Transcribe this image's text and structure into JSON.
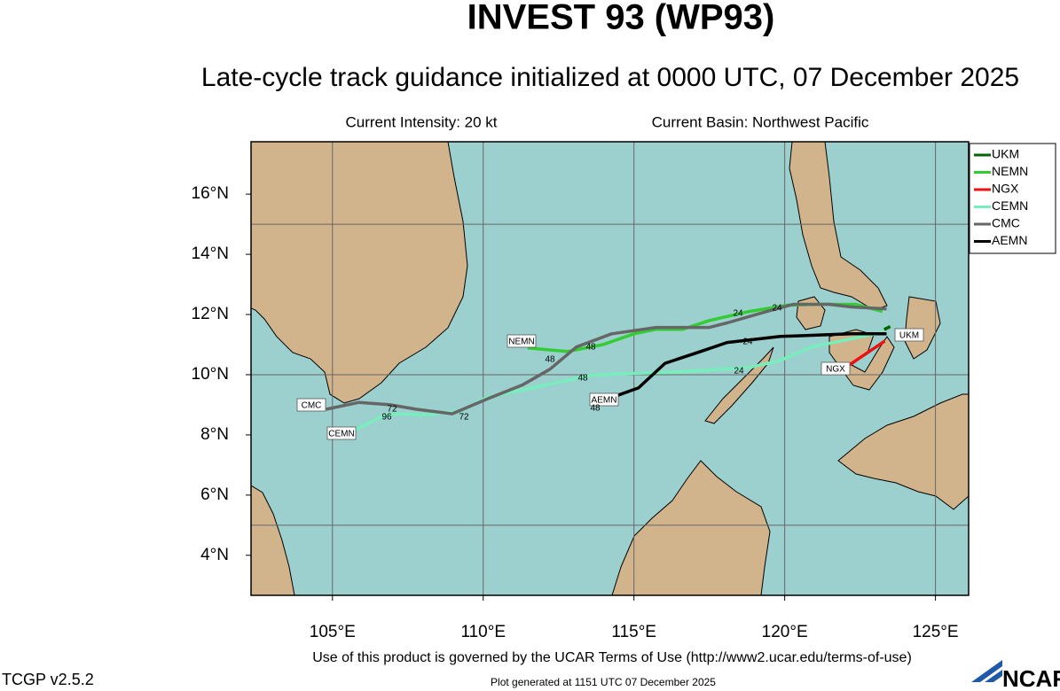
{
  "header": {
    "title": "INVEST 93 (WP93)",
    "subtitle": "Late-cycle track guidance initialized at 0000 UTC, 07 December 2025",
    "intensity": "Current Intensity: 20 kt",
    "basin": "Current Basin: Northwest Pacific"
  },
  "map": {
    "lonlim": [
      102.3,
      126.1
    ],
    "latlim": [
      2.67,
      17.74
    ],
    "lon_ticks": [
      {
        "value": 105,
        "label": "105°E"
      },
      {
        "value": 110,
        "label": "110°E"
      },
      {
        "value": 115,
        "label": "115°E"
      },
      {
        "value": 120,
        "label": "120°E"
      },
      {
        "value": 125,
        "label": "125°E"
      }
    ],
    "lat_ticks": [
      {
        "value": 4,
        "label": "4°N"
      },
      {
        "value": 6,
        "label": "6°N"
      },
      {
        "value": 8,
        "label": "8°N"
      },
      {
        "value": 10,
        "label": "10°N"
      },
      {
        "value": 12,
        "label": "12°N"
      },
      {
        "value": 14,
        "label": "14°N"
      },
      {
        "value": 16,
        "label": "16°N"
      }
    ],
    "grid_lats": [
      5,
      10,
      15
    ],
    "tracks": [
      {
        "name": "UKM",
        "color": "#006400",
        "lon": [
          123.5,
          123.3
        ],
        "lat": [
          11.6,
          11.5
        ]
      },
      {
        "name": "NEMN",
        "color": "#33cc33",
        "lon": [
          123.24,
          122.35,
          121.03,
          120.09,
          118.82,
          117.5,
          116.62,
          115.74,
          115.0,
          113.97,
          112.79,
          111.47
        ],
        "lat": [
          12.1,
          12.34,
          12.34,
          12.31,
          12.1,
          11.8,
          11.51,
          11.51,
          11.36,
          11.0,
          10.77,
          10.89
        ]
      },
      {
        "name": "NGX",
        "color": "#ee1111",
        "lon": [
          123.32,
          122.15
        ],
        "lat": [
          11.12,
          10.33
        ]
      },
      {
        "name": "CEMN",
        "color": "#77eebb",
        "lon": [
          123.32,
          121.62,
          120.88,
          119.85,
          118.82,
          116.47,
          114.56,
          113.53,
          111.32,
          110.15,
          109.26,
          108.09,
          107.06,
          106.62,
          106.03,
          105.29
        ],
        "lat": [
          11.42,
          11.07,
          10.92,
          10.47,
          10.24,
          10.09,
          10.03,
          9.97,
          9.5,
          9.26,
          8.79,
          8.67,
          8.7,
          8.61,
          8.31,
          7.96
        ]
      },
      {
        "name": "CMC",
        "color": "#666666",
        "lon": [
          123.38,
          122.21,
          121.47,
          120.29,
          119.41,
          118.09,
          117.5,
          115.74,
          114.26,
          113.09,
          112.21,
          111.32,
          110.15,
          108.97,
          107.79,
          106.91,
          105.88,
          104.79
        ],
        "lat": [
          12.19,
          12.25,
          12.34,
          12.34,
          12.1,
          11.72,
          11.57,
          11.57,
          11.36,
          10.92,
          10.18,
          9.67,
          9.2,
          8.7,
          8.85,
          9.0,
          9.08,
          8.85
        ]
      },
      {
        "name": "AEMN",
        "color": "#000000",
        "lon": [
          123.38,
          122.21,
          119.85,
          118.09,
          117.21,
          116.03,
          115.15,
          113.97
        ],
        "lat": [
          11.36,
          11.36,
          11.27,
          11.07,
          10.77,
          10.38,
          9.56,
          9.14
        ]
      }
    ],
    "forecast_hour_labels": [
      "24",
      "24",
      "24",
      "24",
      "48",
      "48",
      "48",
      "48",
      "72",
      "72",
      "96"
    ]
  },
  "footer": {
    "terms": "Use of this product is governed by the UCAR Terms of Use (http://www2.ucar.edu/terms-of-use)",
    "version": "TCGP v2.5.2",
    "generated": "Plot generated at 1151 UTC  07 December 2025",
    "logo": "NCAR"
  }
}
